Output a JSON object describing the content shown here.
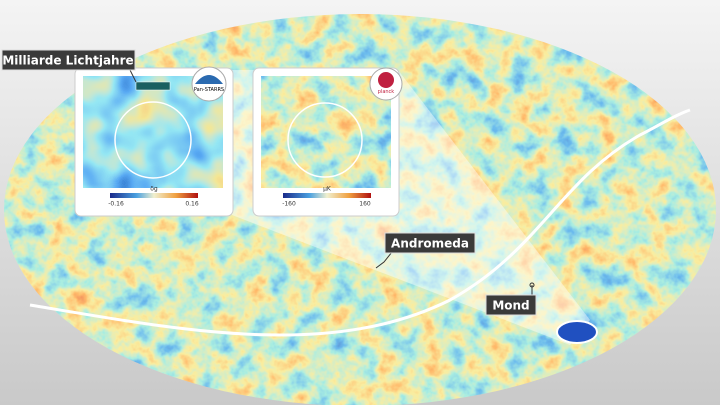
{
  "labels": {
    "scale": "Milliarde Lichtjahre",
    "andromeda": "Andromeda",
    "moon": "Mond"
  },
  "panels": [
    {
      "logo": "Pan-STARRS",
      "colorbar": {
        "min": "-0.16",
        "max": "0.16",
        "unit": "δg"
      }
    },
    {
      "logo": "planck",
      "colorbar": {
        "min": "-160",
        "max": "160",
        "unit": "μK"
      }
    }
  ]
}
